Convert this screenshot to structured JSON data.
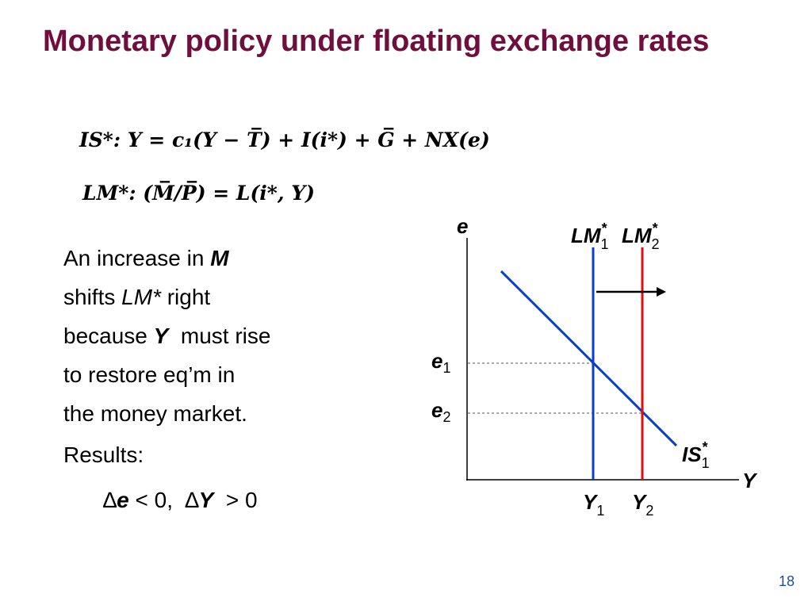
{
  "title": "Monetary policy under floating exchange rates",
  "equations": [
    "IS*: Y = c₁(Y − T̅) + I(i*) + G̅ + NX(e)",
    "LM*: (M̅/P̅) = L(i*, Y)"
  ],
  "body": [
    [
      "An increase in ",
      "M"
    ],
    [
      "shifts ",
      "LM*",
      " right"
    ],
    [
      "because ",
      "Y",
      "  must rise"
    ],
    [
      "to restore eq’m in"
    ],
    [
      "the money market."
    ],
    [
      "Results:"
    ]
  ],
  "result": [
    "∆",
    "e",
    " < 0,  ∆",
    "Y",
    "  > 0"
  ],
  "diagram": {
    "axis_y": "e",
    "axis_x": "Y",
    "lm1": {
      "base": "LM",
      "sub": "1",
      "sup": "*"
    },
    "lm2": {
      "base": "LM",
      "sub": "2",
      "sup": "*"
    },
    "is1": {
      "base": "IS",
      "sub": "1",
      "sup": "*"
    },
    "e1": {
      "base": "e",
      "sub": "1"
    },
    "e2": {
      "base": "e",
      "sub": "2"
    },
    "y1": {
      "base": "Y",
      "sub": "1"
    },
    "y2": {
      "base": "Y",
      "sub": "2"
    }
  },
  "page_number": "18"
}
